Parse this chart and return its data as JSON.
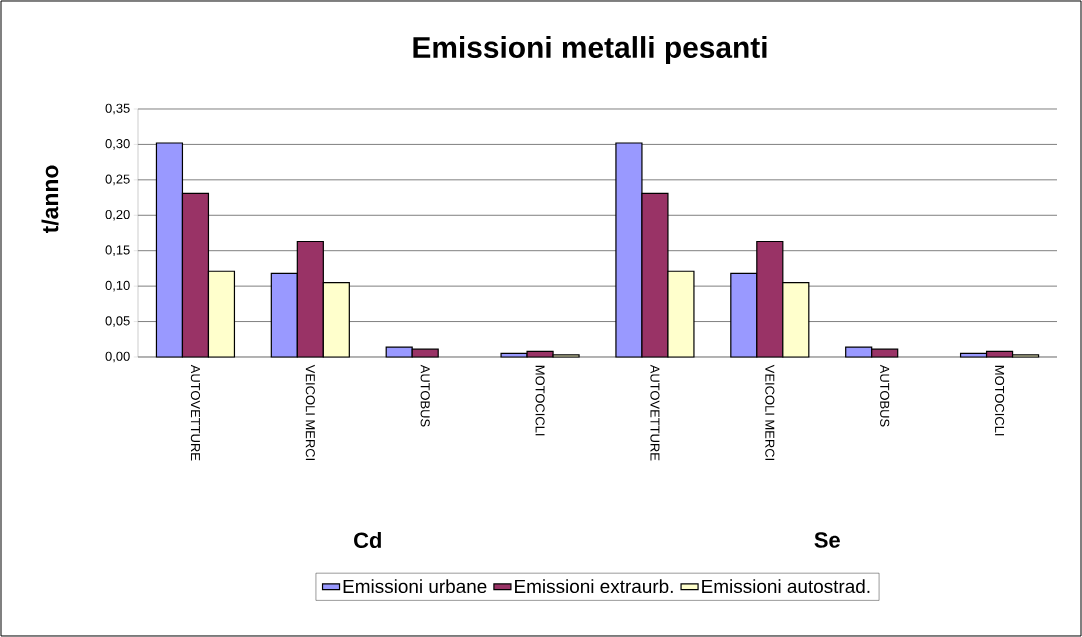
{
  "chart_data": {
    "type": "bar",
    "title": "Emissioni metalli pesanti",
    "ylabel": "t/anno",
    "categories": [
      "AUTOVETTURE",
      "VEICOLI MERCI",
      "AUTOBUS",
      "MOTOCICLI",
      "AUTOVETTURE",
      "VEICOLI MERCI",
      "AUTOBUS",
      "MOTOCICLI"
    ],
    "series": [
      {
        "name": "Emissioni urbane",
        "color": "#9999ff",
        "values": [
          0.302,
          0.118,
          0.014,
          0.005,
          0.302,
          0.118,
          0.014,
          0.005
        ]
      },
      {
        "name": "Emissioni extraurb.",
        "color": "#993366",
        "values": [
          0.231,
          0.163,
          0.011,
          0.008,
          0.231,
          0.163,
          0.011,
          0.008
        ]
      },
      {
        "name": "Emissioni autostrad.",
        "color": "#ffffcc",
        "values": [
          0.121,
          0.105,
          null,
          0.003,
          0.121,
          0.105,
          null,
          0.003
        ]
      }
    ],
    "annotations": [
      "Cd",
      "Se"
    ],
    "ylim": [
      0,
      0.35
    ],
    "yticks": [
      {
        "value": 0,
        "label": "0,00"
      },
      {
        "value": 0.05,
        "label": "0,05"
      },
      {
        "value": 0.1,
        "label": "0,10"
      },
      {
        "value": 0.15,
        "label": "0,15"
      },
      {
        "value": 0.2,
        "label": "0,20"
      },
      {
        "value": 0.25,
        "label": "0,25"
      },
      {
        "value": 0.3,
        "label": "0,30"
      },
      {
        "value": 0.35,
        "label": "0,35"
      }
    ],
    "grid": "y",
    "legend": "bottom"
  }
}
